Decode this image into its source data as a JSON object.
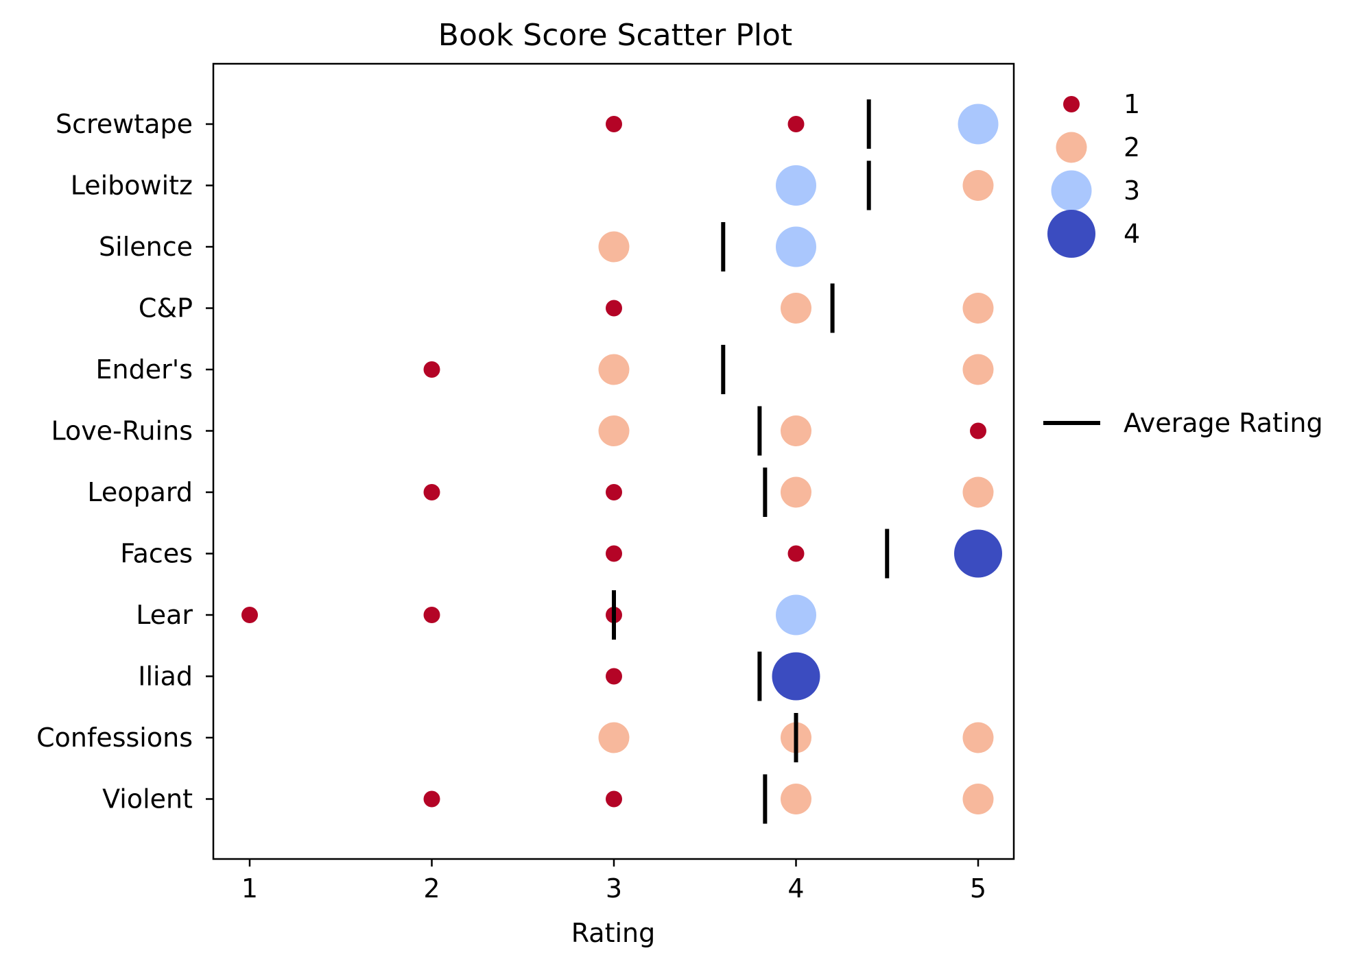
{
  "chart_data": {
    "type": "scatter",
    "title": "Book Score Scatter Plot",
    "xlabel": "Rating",
    "ylabel": "",
    "xlim": [
      0.8,
      5.2
    ],
    "xticks": [
      1,
      2,
      3,
      4,
      5
    ],
    "grid": false,
    "categories": [
      "Screwtape",
      "Leibowitz",
      "Silence",
      "C&P",
      "Ender's",
      "Love-Ruins",
      "Leopard",
      "Faces",
      "Lear",
      "Iliad",
      "Confessions",
      "Violent"
    ],
    "size_legend": {
      "entries": [
        {
          "label": "1",
          "count": 1,
          "color": "#b40426"
        },
        {
          "label": "2",
          "count": 2,
          "color": "#f7b89c"
        },
        {
          "label": "3",
          "count": 3,
          "color": "#aac7fd"
        },
        {
          "label": "4",
          "count": 4,
          "color": "#3b4cc0"
        }
      ],
      "placement": "outside-right-top"
    },
    "average_legend": {
      "label": "Average Rating",
      "color": "#000000",
      "placement": "outside-right"
    },
    "points": [
      {
        "book": "Screwtape",
        "rating": 3,
        "count": 1
      },
      {
        "book": "Screwtape",
        "rating": 4,
        "count": 1
      },
      {
        "book": "Screwtape",
        "rating": 5,
        "count": 3
      },
      {
        "book": "Leibowitz",
        "rating": 4,
        "count": 3
      },
      {
        "book": "Leibowitz",
        "rating": 5,
        "count": 2
      },
      {
        "book": "Silence",
        "rating": 3,
        "count": 2
      },
      {
        "book": "Silence",
        "rating": 4,
        "count": 3
      },
      {
        "book": "C&P",
        "rating": 3,
        "count": 1
      },
      {
        "book": "C&P",
        "rating": 4,
        "count": 2
      },
      {
        "book": "C&P",
        "rating": 5,
        "count": 2
      },
      {
        "book": "Ender's",
        "rating": 2,
        "count": 1
      },
      {
        "book": "Ender's",
        "rating": 3,
        "count": 2
      },
      {
        "book": "Ender's",
        "rating": 5,
        "count": 2
      },
      {
        "book": "Love-Ruins",
        "rating": 3,
        "count": 2
      },
      {
        "book": "Love-Ruins",
        "rating": 4,
        "count": 2
      },
      {
        "book": "Love-Ruins",
        "rating": 5,
        "count": 1
      },
      {
        "book": "Leopard",
        "rating": 2,
        "count": 1
      },
      {
        "book": "Leopard",
        "rating": 3,
        "count": 1
      },
      {
        "book": "Leopard",
        "rating": 4,
        "count": 2
      },
      {
        "book": "Leopard",
        "rating": 5,
        "count": 2
      },
      {
        "book": "Faces",
        "rating": 3,
        "count": 1
      },
      {
        "book": "Faces",
        "rating": 4,
        "count": 1
      },
      {
        "book": "Faces",
        "rating": 5,
        "count": 4
      },
      {
        "book": "Lear",
        "rating": 1,
        "count": 1
      },
      {
        "book": "Lear",
        "rating": 2,
        "count": 1
      },
      {
        "book": "Lear",
        "rating": 3,
        "count": 1
      },
      {
        "book": "Lear",
        "rating": 4,
        "count": 3
      },
      {
        "book": "Iliad",
        "rating": 3,
        "count": 1
      },
      {
        "book": "Iliad",
        "rating": 4,
        "count": 4
      },
      {
        "book": "Confessions",
        "rating": 3,
        "count": 2
      },
      {
        "book": "Confessions",
        "rating": 4,
        "count": 2
      },
      {
        "book": "Confessions",
        "rating": 5,
        "count": 2
      },
      {
        "book": "Violent",
        "rating": 2,
        "count": 1
      },
      {
        "book": "Violent",
        "rating": 3,
        "count": 1
      },
      {
        "book": "Violent",
        "rating": 4,
        "count": 2
      },
      {
        "book": "Violent",
        "rating": 5,
        "count": 2
      }
    ],
    "averages": [
      {
        "book": "Screwtape",
        "value": 4.4
      },
      {
        "book": "Leibowitz",
        "value": 4.4
      },
      {
        "book": "Silence",
        "value": 3.6
      },
      {
        "book": "C&P",
        "value": 4.2
      },
      {
        "book": "Ender's",
        "value": 3.6
      },
      {
        "book": "Love-Ruins",
        "value": 3.8
      },
      {
        "book": "Leopard",
        "value": 3.83
      },
      {
        "book": "Faces",
        "value": 4.5
      },
      {
        "book": "Lear",
        "value": 3.0
      },
      {
        "book": "Iliad",
        "value": 3.8
      },
      {
        "book": "Confessions",
        "value": 4.0
      },
      {
        "book": "Violent",
        "value": 3.83
      }
    ]
  }
}
